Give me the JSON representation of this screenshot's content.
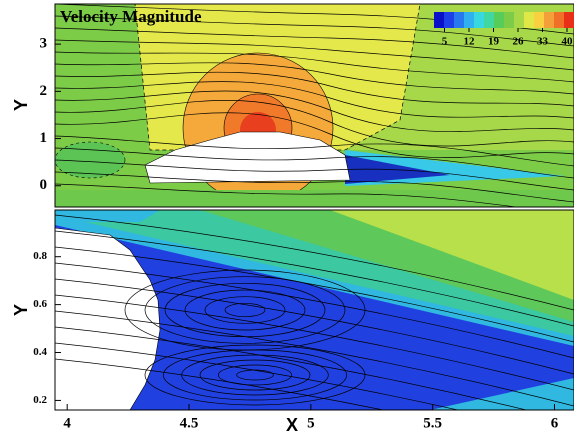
{
  "chart_data": [
    {
      "type": "contour",
      "title": "Velocity Magnitude",
      "ylabel": "Y",
      "ylim": [
        -0.45,
        3.85
      ],
      "yticks": [
        0,
        1,
        2,
        3
      ],
      "colorbar": {
        "lim": [
          2,
          42
        ],
        "ticks": [
          5,
          12,
          19,
          26,
          33,
          40
        ]
      }
    },
    {
      "type": "contour",
      "xlabel": "X",
      "ylabel": "Y",
      "xlim": [
        3.95,
        6.08
      ],
      "xticks": [
        4,
        4.5,
        5,
        5.5,
        6
      ],
      "ylim": [
        0.16,
        0.995
      ],
      "yticks": [
        0.2,
        0.4,
        0.6,
        0.8
      ]
    }
  ]
}
